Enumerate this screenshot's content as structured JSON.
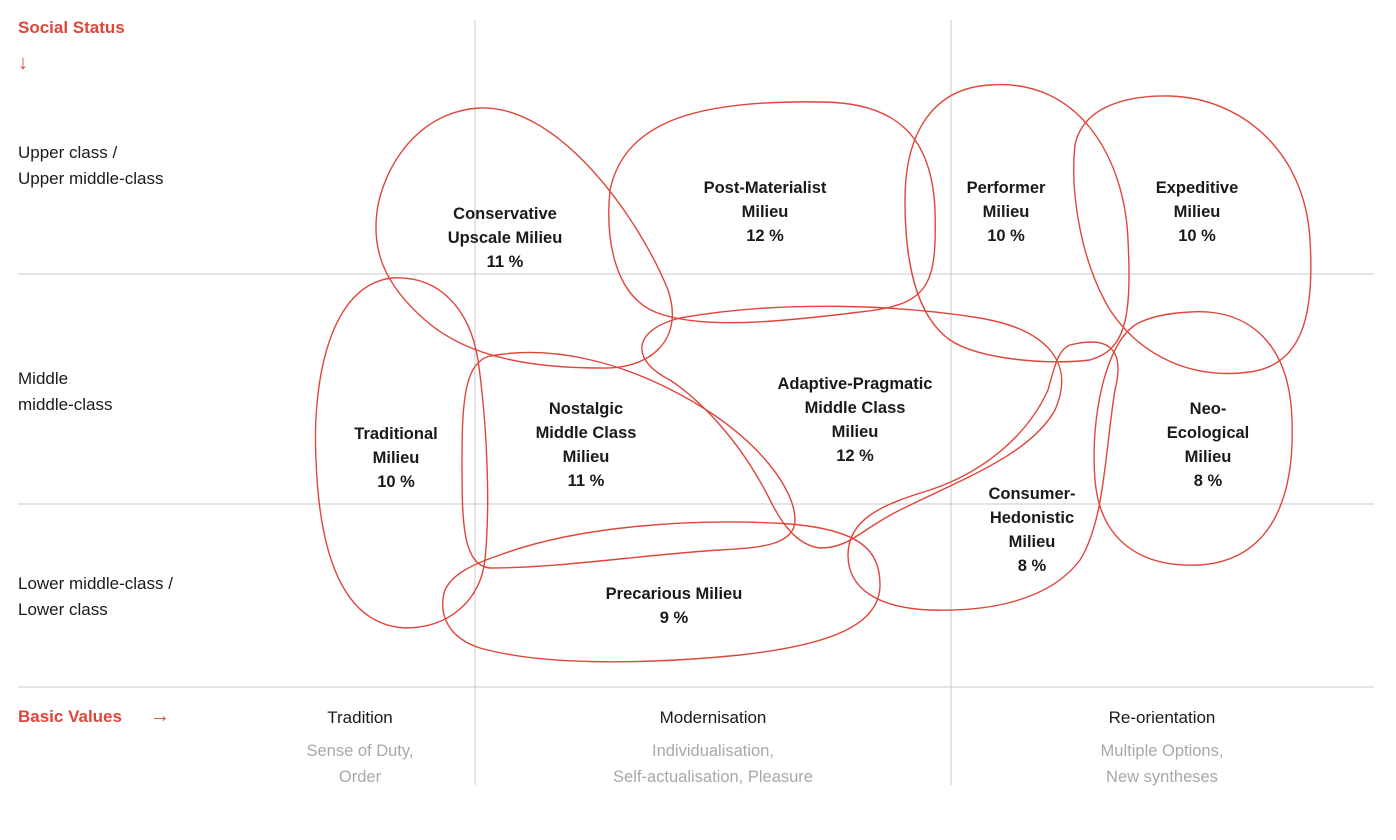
{
  "y_axis": {
    "title": "Social Status",
    "arrow": "↓"
  },
  "x_axis": {
    "title": "Basic Values",
    "arrow": "→"
  },
  "rows": [
    {
      "line1": "Upper class /",
      "line2": "Upper middle-class"
    },
    {
      "line1": "Middle",
      "line2": "middle-class"
    },
    {
      "line1": "Lower middle-class /",
      "line2": "Lower class"
    }
  ],
  "value_columns": [
    {
      "name": "Tradition",
      "desc1": "Sense of Duty,",
      "desc2": "Order"
    },
    {
      "name": "Modernisation",
      "desc1": "Individualisation,",
      "desc2": "Self-actualisation, Pleasure"
    },
    {
      "name": "Re-orientation",
      "desc1": "Multiple Options,",
      "desc2": "New syntheses"
    }
  ],
  "milieus": [
    {
      "lines": [
        "Conservative",
        "Upscale Milieu",
        "11 %"
      ],
      "share_percent": 11
    },
    {
      "lines": [
        "Post-Materialist",
        "Milieu",
        "12 %"
      ],
      "share_percent": 12
    },
    {
      "lines": [
        "Performer",
        "Milieu",
        "10 %"
      ],
      "share_percent": 10
    },
    {
      "lines": [
        "Expeditive",
        "Milieu",
        "10 %"
      ],
      "share_percent": 10
    },
    {
      "lines": [
        "Traditional",
        "Milieu",
        "10 %"
      ],
      "share_percent": 10
    },
    {
      "lines": [
        "Nostalgic",
        "Middle Class",
        "Milieu",
        "11 %"
      ],
      "share_percent": 11
    },
    {
      "lines": [
        "Adaptive-Pragmatic",
        "Middle Class",
        "Milieu",
        "12 %"
      ],
      "share_percent": 12
    },
    {
      "lines": [
        "Neo-",
        "Ecological",
        "Milieu",
        "8 %"
      ],
      "share_percent": 8
    },
    {
      "lines": [
        "Consumer-",
        "Hedonistic",
        "Milieu",
        "8 %"
      ],
      "share_percent": 8
    },
    {
      "lines": [
        "Precarious Milieu",
        "9 %"
      ],
      "share_percent": 9
    }
  ],
  "colors": {
    "accent": "#e0453a",
    "grid": "#c8c8c8",
    "muted_text": "#a8a8a8"
  }
}
